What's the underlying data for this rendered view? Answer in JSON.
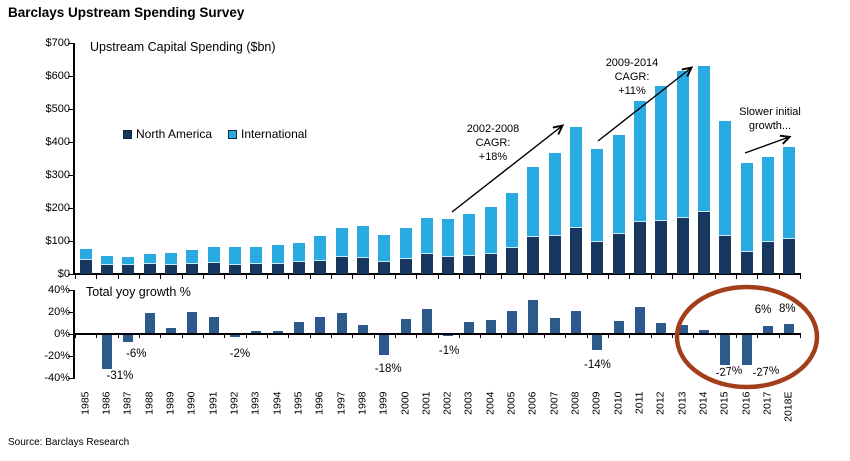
{
  "title": "Barclays Upstream Spending Survey",
  "source": "Source: Barclays Research",
  "chart_data": [
    {
      "type": "bar",
      "stacked": true,
      "title": "Upstream Capital Spending ($bn)",
      "ylabel": "$bn",
      "ylim": [
        0,
        700
      ],
      "y_tick_labels": [
        "$700",
        "$600",
        "$500",
        "$400",
        "$300",
        "$200",
        "$100",
        "$0"
      ],
      "legend_position": "inside-top-left",
      "categories": [
        "1985",
        "1986",
        "1987",
        "1988",
        "1989",
        "1990",
        "1991",
        "1992",
        "1993",
        "1994",
        "1995",
        "1996",
        "1997",
        "1998",
        "1999",
        "2000",
        "2001",
        "2002",
        "2003",
        "2004",
        "2005",
        "2006",
        "2007",
        "2008",
        "2009",
        "2010",
        "2011",
        "2012",
        "2013",
        "2014",
        "2015",
        "2016",
        "2017",
        "2018E"
      ],
      "series": [
        {
          "name": "North America",
          "color": "#17375E",
          "values": [
            42,
            28,
            28,
            31,
            27,
            31,
            33,
            27,
            30,
            29,
            35,
            38,
            52,
            48,
            35,
            45,
            61,
            52,
            56,
            61,
            80,
            112,
            114,
            139,
            96,
            121,
            157,
            161,
            169,
            187,
            116,
            66,
            98,
            106
          ]
        },
        {
          "name": "International",
          "color": "#29ABE2",
          "values": [
            35,
            28,
            23,
            29,
            37,
            42,
            50,
            54,
            53,
            59,
            60,
            78,
            86,
            98,
            84,
            94,
            108,
            115,
            126,
            141,
            165,
            211,
            254,
            305,
            283,
            301,
            368,
            410,
            445,
            442,
            347,
            270,
            258,
            279
          ]
        }
      ],
      "annotations": [
        {
          "lines": [
            "2002-2008",
            "CAGR:",
            "+18%"
          ]
        },
        {
          "lines": [
            "2009-2014",
            "CAGR:",
            "+11%"
          ]
        },
        {
          "lines": [
            "Slower initial",
            "growth..."
          ]
        }
      ]
    },
    {
      "type": "bar",
      "title": "Total yoy growth %",
      "ylim": [
        -40,
        40
      ],
      "y_tick_labels": [
        "40%",
        "20%",
        "0%",
        "-20%",
        "-40%"
      ],
      "bar_color": "#2E5A8B",
      "highlight_color": "#A33E1B",
      "categories": [
        "1985",
        "1986",
        "1987",
        "1988",
        "1989",
        "1990",
        "1991",
        "1992",
        "1993",
        "1994",
        "1995",
        "1996",
        "1997",
        "1998",
        "1999",
        "2000",
        "2001",
        "2002",
        "2003",
        "2004",
        "2005",
        "2006",
        "2007",
        "2008",
        "2009",
        "2010",
        "2011",
        "2012",
        "2013",
        "2014",
        "2015",
        "2016",
        "2017",
        "2018E"
      ],
      "values": [
        null,
        -31,
        -6,
        18,
        5,
        19,
        15,
        -2,
        2,
        2,
        10,
        15,
        18,
        7,
        -18,
        13,
        22,
        -1,
        10,
        12,
        20,
        30,
        14,
        20,
        -14,
        11,
        24,
        9,
        7,
        3,
        -27,
        -27,
        6,
        8
      ],
      "callouts": [
        {
          "year": "1986",
          "text": "-31%"
        },
        {
          "year": "1987",
          "text": "-6%"
        },
        {
          "year": "1992",
          "text": "-2%"
        },
        {
          "year": "1999",
          "text": "-18%"
        },
        {
          "year": "2002",
          "text": "-1%"
        },
        {
          "year": "2009",
          "text": "-14%"
        },
        {
          "year": "2015",
          "text": "-27%"
        },
        {
          "year": "2016",
          "text": "-27%"
        },
        {
          "year": "2017",
          "text": "6%"
        },
        {
          "year": "2018E",
          "text": "8%"
        }
      ]
    }
  ]
}
